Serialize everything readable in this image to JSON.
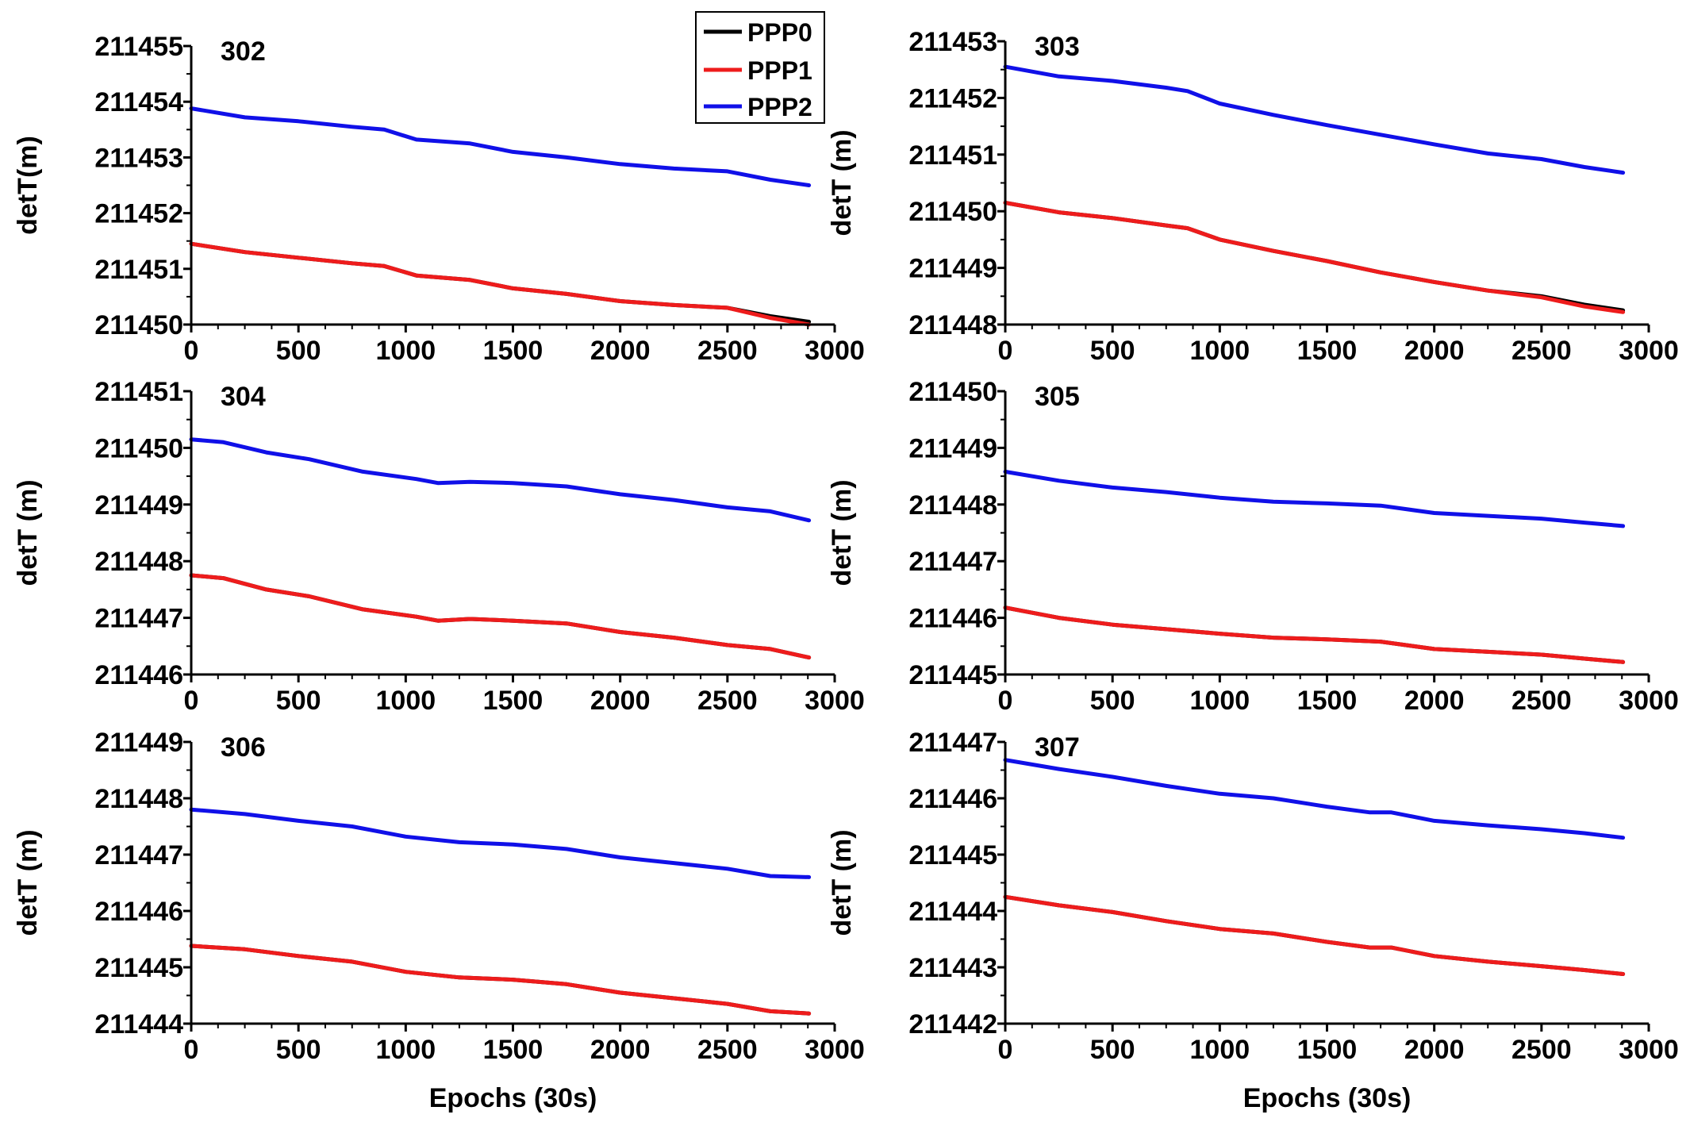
{
  "colors": {
    "PPP0": "#000000",
    "PPP1": "#ee1c1c",
    "PPP2": "#1010e8"
  },
  "legend": {
    "placement": "top-center",
    "entries": [
      "PPP0",
      "PPP1",
      "PPP2"
    ]
  },
  "chart_data": [
    {
      "type": "line",
      "title": "302",
      "xlabel": "",
      "ylabel": "detT(m)",
      "xlim": [
        0,
        3000
      ],
      "ylim": [
        211450,
        211455
      ],
      "xticks": [
        "0",
        "500",
        "1000",
        "1500",
        "2000",
        "2500",
        "3000"
      ],
      "yticks": [
        "211450",
        "211451",
        "211452",
        "211453",
        "211454",
        "211455"
      ],
      "x": [
        0,
        250,
        500,
        750,
        900,
        1050,
        1300,
        1500,
        1750,
        2000,
        2250,
        2500,
        2700,
        2880
      ],
      "series": [
        {
          "name": "PPP0",
          "values": [
            211451.45,
            211451.3,
            211451.2,
            211451.1,
            211451.05,
            211450.88,
            211450.8,
            211450.65,
            211450.55,
            211450.42,
            211450.35,
            211450.3,
            211450.15,
            211450.05
          ]
        },
        {
          "name": "PPP1",
          "values": [
            211451.45,
            211451.3,
            211451.2,
            211451.1,
            211451.05,
            211450.88,
            211450.8,
            211450.65,
            211450.55,
            211450.42,
            211450.35,
            211450.3,
            211450.12,
            211450.0
          ]
        },
        {
          "name": "PPP2",
          "values": [
            211453.88,
            211453.72,
            211453.65,
            211453.55,
            211453.5,
            211453.32,
            211453.25,
            211453.1,
            211453.0,
            211452.88,
            211452.8,
            211452.75,
            211452.6,
            211452.5
          ]
        }
      ]
    },
    {
      "type": "line",
      "title": "303",
      "xlabel": "",
      "ylabel": "detT (m)",
      "xlim": [
        0,
        3000
      ],
      "ylim": [
        211448,
        211453
      ],
      "xticks": [
        "0",
        "500",
        "1000",
        "1500",
        "2000",
        "2500",
        "3000"
      ],
      "yticks": [
        "211448",
        "211449",
        "211450",
        "211451",
        "211452",
        "211453"
      ],
      "x": [
        0,
        250,
        500,
        750,
        850,
        1000,
        1250,
        1500,
        1750,
        2000,
        2250,
        2500,
        2700,
        2880
      ],
      "series": [
        {
          "name": "PPP0",
          "values": [
            211450.15,
            211449.98,
            211449.88,
            211449.75,
            211449.7,
            211449.5,
            211449.3,
            211449.12,
            211448.92,
            211448.75,
            211448.6,
            211448.5,
            211448.35,
            211448.25
          ]
        },
        {
          "name": "PPP1",
          "values": [
            211450.15,
            211449.98,
            211449.88,
            211449.75,
            211449.7,
            211449.5,
            211449.3,
            211449.12,
            211448.92,
            211448.75,
            211448.6,
            211448.48,
            211448.32,
            211448.22
          ]
        },
        {
          "name": "PPP2",
          "values": [
            211452.55,
            211452.38,
            211452.3,
            211452.18,
            211452.12,
            211451.9,
            211451.7,
            211451.52,
            211451.35,
            211451.18,
            211451.02,
            211450.92,
            211450.78,
            211450.68
          ]
        }
      ]
    },
    {
      "type": "line",
      "title": "304",
      "xlabel": "",
      "ylabel": "detT (m)",
      "xlim": [
        0,
        3000
      ],
      "ylim": [
        211446,
        211451
      ],
      "xticks": [
        "0",
        "500",
        "1000",
        "1500",
        "2000",
        "2500",
        "3000"
      ],
      "yticks": [
        "211446",
        "211447",
        "211448",
        "211449",
        "211450",
        "211451"
      ],
      "x": [
        0,
        150,
        350,
        550,
        800,
        1050,
        1150,
        1300,
        1500,
        1750,
        2000,
        2250,
        2500,
        2700,
        2880
      ],
      "series": [
        {
          "name": "PPP0",
          "values": [
            211447.75,
            211447.7,
            211447.5,
            211447.38,
            211447.15,
            211447.02,
            211446.95,
            211446.98,
            211446.95,
            211446.9,
            211446.75,
            211446.65,
            211446.52,
            211446.45,
            211446.3
          ]
        },
        {
          "name": "PPP1",
          "values": [
            211447.75,
            211447.7,
            211447.5,
            211447.38,
            211447.15,
            211447.02,
            211446.95,
            211446.98,
            211446.95,
            211446.9,
            211446.75,
            211446.65,
            211446.52,
            211446.45,
            211446.3
          ]
        },
        {
          "name": "PPP2",
          "values": [
            211450.15,
            211450.1,
            211449.92,
            211449.8,
            211449.58,
            211449.45,
            211449.38,
            211449.4,
            211449.38,
            211449.32,
            211449.18,
            211449.08,
            211448.95,
            211448.88,
            211448.72
          ]
        }
      ]
    },
    {
      "type": "line",
      "title": "305",
      "xlabel": "",
      "ylabel": "detT (m)",
      "xlim": [
        0,
        3000
      ],
      "ylim": [
        211445,
        211450
      ],
      "xticks": [
        "0",
        "500",
        "1000",
        "1500",
        "2000",
        "2500",
        "3000"
      ],
      "yticks": [
        "211445",
        "211446",
        "211447",
        "211448",
        "211449",
        "211450"
      ],
      "x": [
        0,
        250,
        500,
        750,
        1000,
        1250,
        1500,
        1750,
        2000,
        2250,
        2500,
        2700,
        2880
      ],
      "series": [
        {
          "name": "PPP0",
          "values": [
            211446.18,
            211446.0,
            211445.88,
            211445.8,
            211445.72,
            211445.65,
            211445.62,
            211445.58,
            211445.45,
            211445.4,
            211445.35,
            211445.28,
            211445.22
          ]
        },
        {
          "name": "PPP1",
          "values": [
            211446.18,
            211446.0,
            211445.88,
            211445.8,
            211445.72,
            211445.65,
            211445.62,
            211445.58,
            211445.45,
            211445.4,
            211445.35,
            211445.28,
            211445.22
          ]
        },
        {
          "name": "PPP2",
          "values": [
            211448.58,
            211448.42,
            211448.3,
            211448.22,
            211448.12,
            211448.05,
            211448.02,
            211447.98,
            211447.85,
            211447.8,
            211447.75,
            211447.68,
            211447.62
          ]
        }
      ]
    },
    {
      "type": "line",
      "title": "306",
      "xlabel": "Epochs (30s)",
      "ylabel": "detT (m)",
      "xlim": [
        0,
        3000
      ],
      "ylim": [
        211444,
        211449
      ],
      "xticks": [
        "0",
        "500",
        "1000",
        "1500",
        "2000",
        "2500",
        "3000"
      ],
      "yticks": [
        "211444",
        "211445",
        "211446",
        "211447",
        "211448",
        "211449"
      ],
      "x": [
        0,
        250,
        500,
        750,
        1000,
        1250,
        1500,
        1750,
        2000,
        2250,
        2500,
        2700,
        2880
      ],
      "series": [
        {
          "name": "PPP0",
          "values": [
            211445.38,
            211445.32,
            211445.2,
            211445.1,
            211444.92,
            211444.82,
            211444.78,
            211444.7,
            211444.55,
            211444.45,
            211444.35,
            211444.22,
            211444.18
          ]
        },
        {
          "name": "PPP1",
          "values": [
            211445.38,
            211445.32,
            211445.2,
            211445.1,
            211444.92,
            211444.82,
            211444.78,
            211444.7,
            211444.55,
            211444.45,
            211444.35,
            211444.22,
            211444.18
          ]
        },
        {
          "name": "PPP2",
          "values": [
            211447.8,
            211447.72,
            211447.6,
            211447.5,
            211447.32,
            211447.22,
            211447.18,
            211447.1,
            211446.95,
            211446.85,
            211446.75,
            211446.62,
            211446.6
          ]
        }
      ]
    },
    {
      "type": "line",
      "title": "307",
      "xlabel": "Epochs (30s)",
      "ylabel": "detT (m)",
      "xlim": [
        0,
        3000
      ],
      "ylim": [
        211442,
        211447
      ],
      "xticks": [
        "0",
        "500",
        "1000",
        "1500",
        "2000",
        "2500",
        "3000"
      ],
      "yticks": [
        "211442",
        "211443",
        "211444",
        "211445",
        "211446",
        "211447"
      ],
      "x": [
        0,
        250,
        500,
        750,
        1000,
        1250,
        1500,
        1700,
        1800,
        2000,
        2250,
        2500,
        2700,
        2880
      ],
      "series": [
        {
          "name": "PPP0",
          "values": [
            211444.25,
            211444.1,
            211443.98,
            211443.82,
            211443.68,
            211443.6,
            211443.45,
            211443.35,
            211443.35,
            211443.2,
            211443.1,
            211443.02,
            211442.95,
            211442.88
          ]
        },
        {
          "name": "PPP1",
          "values": [
            211444.25,
            211444.1,
            211443.98,
            211443.82,
            211443.68,
            211443.6,
            211443.45,
            211443.35,
            211443.35,
            211443.2,
            211443.1,
            211443.02,
            211442.95,
            211442.88
          ]
        },
        {
          "name": "PPP2",
          "values": [
            211446.68,
            211446.52,
            211446.38,
            211446.22,
            211446.08,
            211446.0,
            211445.85,
            211445.75,
            211445.75,
            211445.6,
            211445.52,
            211445.45,
            211445.38,
            211445.3
          ]
        }
      ]
    }
  ]
}
